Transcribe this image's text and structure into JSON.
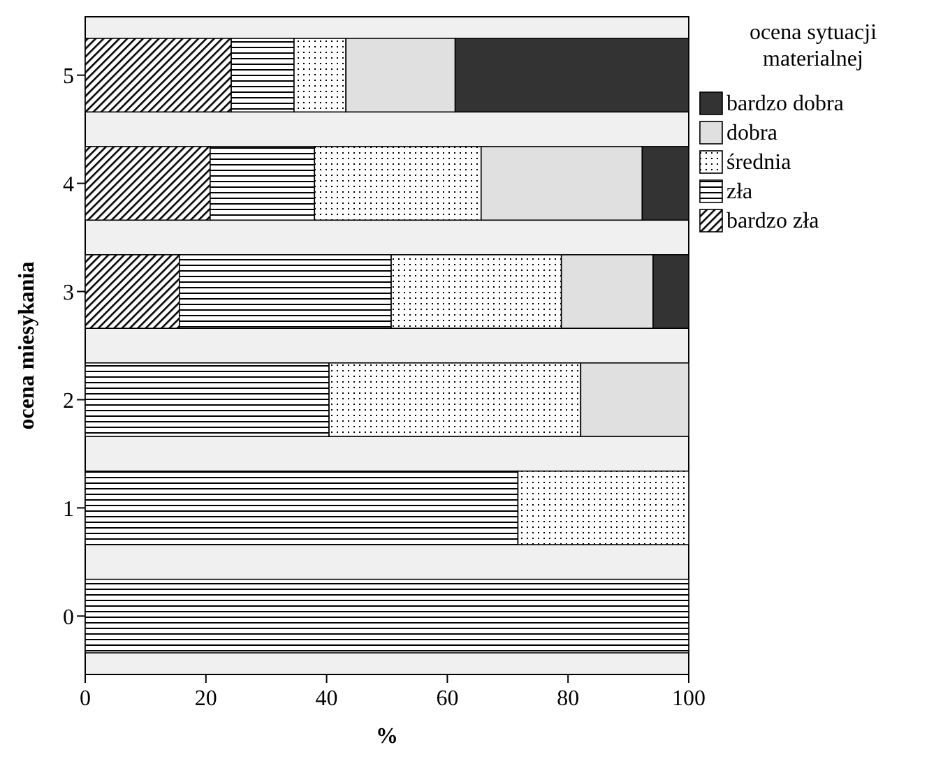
{
  "chart_data": {
    "type": "bar",
    "orientation": "horizontal",
    "stacked": true,
    "xlabel": "%",
    "ylabel": "ocena miesykania",
    "legend_title": "ocena sytuacji materialnej",
    "legend": "right",
    "categories": [
      "5",
      "4",
      "3",
      "2",
      "1",
      "0"
    ],
    "xlim": [
      0,
      100
    ],
    "xticks": [
      0,
      20,
      40,
      60,
      80,
      100
    ],
    "series": [
      {
        "name": "bardzo zła",
        "color": "#000000",
        "values": [
          24.2,
          20.7,
          15.6,
          0,
          0,
          0
        ]
      },
      {
        "name": "zła",
        "color": "#000000",
        "values": [
          10.4,
          17.3,
          35.1,
          40.4,
          71.7,
          100
        ]
      },
      {
        "name": "średnia",
        "color": "#000000",
        "values": [
          8.6,
          27.6,
          28.2,
          41.7,
          28.3,
          0
        ]
      },
      {
        "name": "dobra",
        "color": "#e0e0e0",
        "values": [
          18.1,
          26.7,
          15.2,
          17.9,
          0,
          0
        ]
      },
      {
        "name": "bardzo dobra",
        "color": "#333333",
        "values": [
          38.7,
          7.7,
          5.9,
          0,
          0,
          0
        ]
      }
    ]
  }
}
